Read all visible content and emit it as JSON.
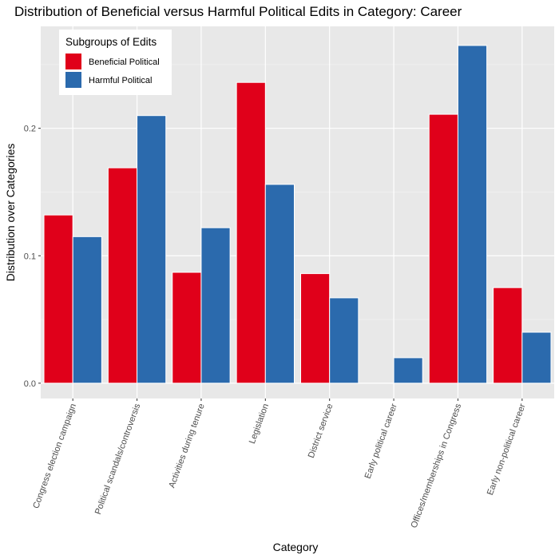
{
  "chart_data": {
    "type": "bar",
    "title": "Distribution of Beneficial versus Harmful Political Edits in Category: Career",
    "xlabel": "Category",
    "ylabel": "Distribution over Categories",
    "categories": [
      "Congress election campaign",
      "Political scandals/controversis",
      "Activities during tenure",
      "Legislation",
      "District service",
      "Early political career",
      "Offices/memberships in Congress",
      "Early non-political career"
    ],
    "series": [
      {
        "name": "Beneficial Political",
        "color": "#e0001a",
        "values": [
          0.132,
          0.169,
          0.087,
          0.236,
          0.086,
          0.0,
          0.211,
          0.075
        ]
      },
      {
        "name": "Harmful Political",
        "color": "#2b6aad",
        "values": [
          0.115,
          0.21,
          0.122,
          0.156,
          0.067,
          0.02,
          0.265,
          0.04
        ]
      }
    ],
    "ylim": [
      -0.012,
      0.28
    ],
    "yticks": [
      0.0,
      0.1,
      0.2
    ],
    "ytick_labels": [
      "0.0",
      "0.1",
      "0.2"
    ],
    "legend": {
      "title": "Subgroups of Edits",
      "position": "top-left"
    },
    "grid": true,
    "panel_background": "#e8e8e8"
  }
}
